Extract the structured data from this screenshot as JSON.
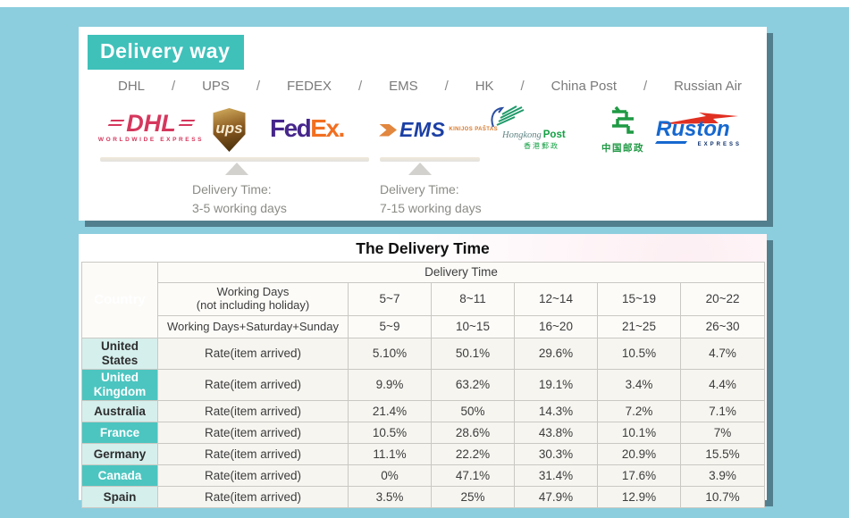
{
  "colors": {
    "page_background": "#8ccede",
    "panel_shadow": "#527f8e",
    "teal_accent": "#3fc1ba",
    "teal_row": "#4cc5c0",
    "light_teal_row": "#d5efec"
  },
  "delivery_way": {
    "badge": "Delivery way",
    "couriers": [
      "DHL",
      "UPS",
      "FEDEX",
      "EMS",
      "HK",
      "China Post",
      "Russian Air"
    ],
    "logos": {
      "dhl": {
        "text": "DHL",
        "sub": "WORLDWIDE EXPRESS"
      },
      "ups": {
        "text": "ups"
      },
      "fedex": {
        "part1": "Fed",
        "part2": "Ex",
        "dot": "."
      },
      "ems": {
        "text": "EMS",
        "sub": "KINIJOS PAŠTAS"
      },
      "hongkong_post": {
        "en1": "Hongkong",
        "en2": "Post",
        "cn": "香港郵政"
      },
      "china_post": {
        "cn": "中国邮政"
      },
      "ruston": {
        "text": "Ruston",
        "sub": "EXPRESS"
      }
    },
    "notes": [
      {
        "title": "Delivery Time:",
        "value": "3-5 working days"
      },
      {
        "title": "Delivery Time:",
        "value": "7-15 working days"
      }
    ]
  },
  "delivery_table": {
    "title": "The Delivery Time",
    "corner": "Country",
    "group_header": "Delivery Time",
    "header_rows": [
      {
        "label_lines": [
          "Working Days",
          "(not including holiday)"
        ],
        "values": [
          "5~7",
          "8~11",
          "12~14",
          "15~19",
          "20~22"
        ]
      },
      {
        "label_lines": [
          "Working Days+Saturday+Sunday"
        ],
        "values": [
          "5~9",
          "10~15",
          "16~20",
          "21~25",
          "26~30"
        ]
      }
    ],
    "rows": [
      {
        "country": "United States",
        "variant": "light",
        "label": "Rate(item arrived)",
        "values": [
          "5.10%",
          "50.1%",
          "29.6%",
          "10.5%",
          "4.7%"
        ]
      },
      {
        "country": "United Kingdom",
        "variant": "teal",
        "label": "Rate(item arrived)",
        "values": [
          "9.9%",
          "63.2%",
          "19.1%",
          "3.4%",
          "4.4%"
        ]
      },
      {
        "country": "Australia",
        "variant": "light",
        "label": "Rate(item arrived)",
        "values": [
          "21.4%",
          "50%",
          "14.3%",
          "7.2%",
          "7.1%"
        ]
      },
      {
        "country": "France",
        "variant": "teal",
        "label": "Rate(item arrived)",
        "values": [
          "10.5%",
          "28.6%",
          "43.8%",
          "10.1%",
          "7%"
        ]
      },
      {
        "country": "Germany",
        "variant": "light",
        "label": "Rate(item arrived)",
        "values": [
          "11.1%",
          "22.2%",
          "30.3%",
          "20.9%",
          "15.5%"
        ]
      },
      {
        "country": "Canada",
        "variant": "teal",
        "label": "Rate(item arrived)",
        "values": [
          "0%",
          "47.1%",
          "31.4%",
          "17.6%",
          "3.9%"
        ]
      },
      {
        "country": "Spain",
        "variant": "light",
        "label": "Rate(item arrived)",
        "values": [
          "3.5%",
          "25%",
          "47.9%",
          "12.9%",
          "10.7%"
        ]
      }
    ]
  }
}
